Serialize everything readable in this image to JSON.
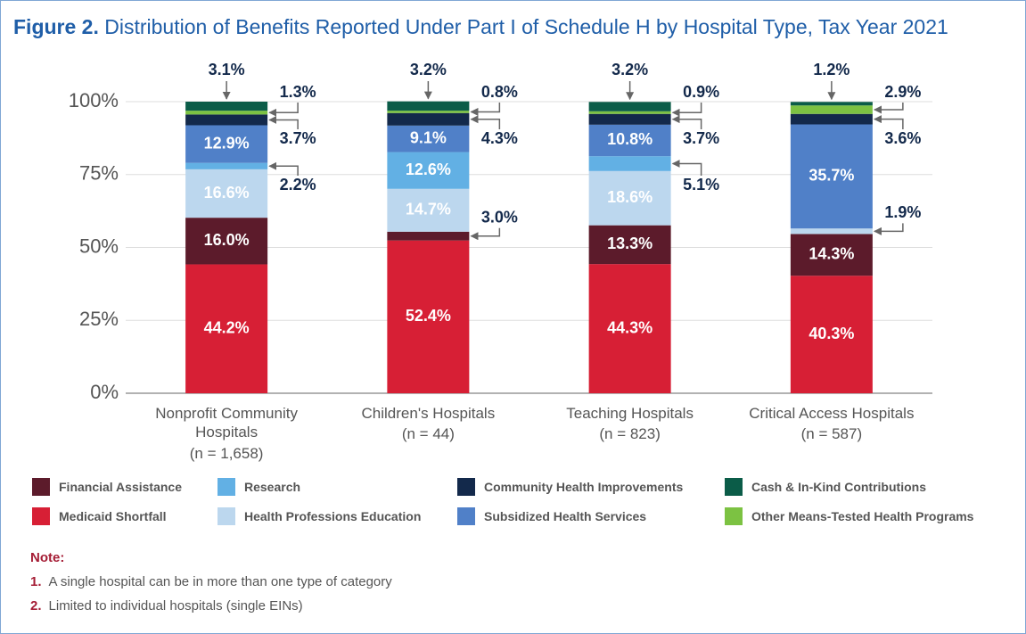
{
  "chart_data": {
    "type": "stacked_bar",
    "figure_label": "Figure 2.",
    "title": "Distribution of Benefits Reported Under Part I of Schedule H by Hospital Type, Tax Year 2021",
    "categories": [
      "Nonprofit Community Hospitals",
      "Children's Hospitals",
      "Teaching Hospitals",
      "Critical Access Hospitals"
    ],
    "category_notes": [
      "(n = 1,658)",
      "(n = 44)",
      "(n = 823)",
      "(n = 587)"
    ],
    "ylim": [
      0,
      100
    ],
    "yticks": [
      {
        "value": 0,
        "label": "0%"
      },
      {
        "value": 25,
        "label": "25%"
      },
      {
        "value": 50,
        "label": "50%"
      },
      {
        "value": 75,
        "label": "75%"
      },
      {
        "value": 100,
        "label": "100%"
      }
    ],
    "grid": true,
    "series": [
      {
        "name": "Medicaid Shortfall",
        "color": "#d71f35",
        "values": [
          44.2,
          52.4,
          44.3,
          40.3
        ],
        "value_labels": [
          "44.2%",
          "52.4%",
          "44.3%",
          "40.3%"
        ]
      },
      {
        "name": "Financial Assistance",
        "color": "#5c1b2b",
        "values": [
          16.0,
          3.0,
          13.3,
          14.3
        ],
        "value_labels": [
          "16.0%",
          "3.0%",
          "13.3%",
          "14.3%"
        ]
      },
      {
        "name": "Health Professions Education",
        "color": "#bcd7ee",
        "values": [
          16.6,
          14.7,
          18.6,
          1.9
        ],
        "value_labels": [
          "16.6%",
          "14.7%",
          "18.6%",
          "1.9%"
        ]
      },
      {
        "name": "Research",
        "color": "#62b0e4",
        "values": [
          2.2,
          12.6,
          5.1,
          null
        ],
        "value_labels": [
          "2.2%",
          "12.6%",
          "5.1%",
          null
        ]
      },
      {
        "name": "Subsidized Health Services",
        "color": "#5080c8",
        "values": [
          12.9,
          9.1,
          10.8,
          35.7
        ],
        "value_labels": [
          "12.9%",
          "9.1%",
          "10.8%",
          "35.7%"
        ]
      },
      {
        "name": "Community Health Improvements",
        "color": "#13294b",
        "values": [
          3.7,
          4.3,
          3.7,
          3.6
        ],
        "value_labels": [
          "3.7%",
          "4.3%",
          "3.7%",
          "3.6%"
        ]
      },
      {
        "name": "Other Means-Tested Health Programs",
        "color": "#7cc242",
        "values": [
          1.3,
          0.8,
          0.9,
          2.9
        ],
        "value_labels": [
          "1.3%",
          "0.8%",
          "0.9%",
          "2.9%"
        ]
      },
      {
        "name": "Cash & In-Kind Contributions",
        "color": "#0b5c48",
        "values": [
          3.1,
          3.2,
          3.2,
          1.2
        ],
        "value_labels": [
          "3.1%",
          "3.2%",
          "3.2%",
          "1.2%"
        ]
      }
    ]
  },
  "notes": {
    "heading": "Note:",
    "items": [
      {
        "number": "1.",
        "text": "A single hospital can be in more than one type of category"
      },
      {
        "number": "2.",
        "text": "Limited to individual hospitals (single EINs)"
      }
    ]
  }
}
